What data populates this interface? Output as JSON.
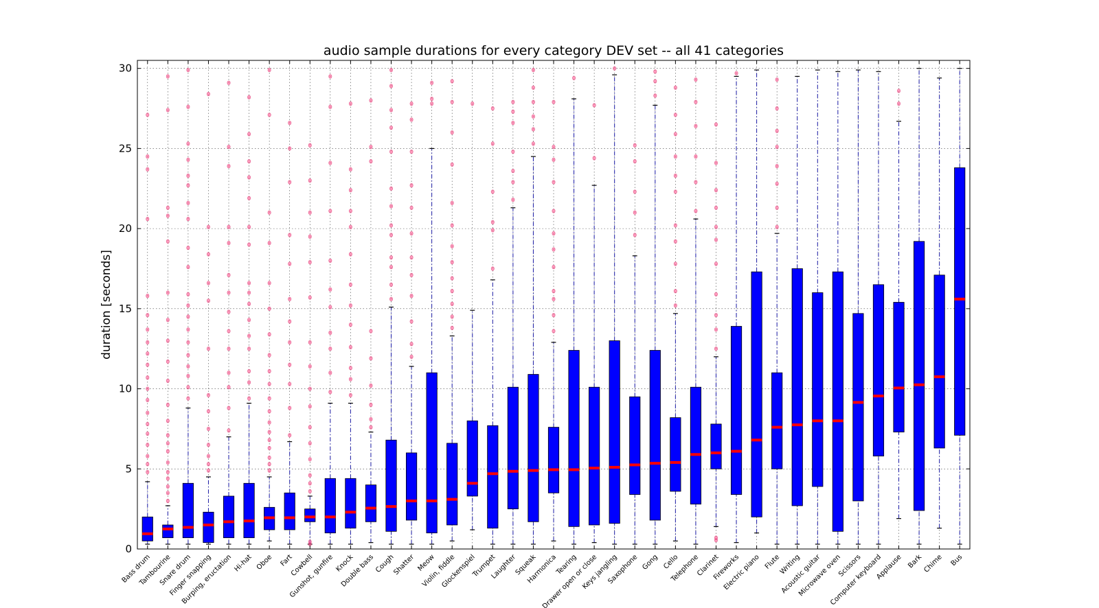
{
  "chart_data": {
    "type": "box",
    "title": "audio sample durations for every category DEV set -- all 41 categories",
    "xlabel": "",
    "ylabel": "duration [seconds]",
    "ylim": [
      0,
      30.5
    ],
    "yticks": [
      0,
      5,
      10,
      15,
      20,
      25,
      30
    ],
    "grid": true,
    "categories": [
      "Bass drum",
      "Tambourine",
      "Snare drum",
      "Finger snapping",
      "Burping, eructation",
      "Hi-hat",
      "Oboe",
      "Fart",
      "Cowbell",
      "Gunshot, gunfire",
      "Knock",
      "Double bass",
      "Cough",
      "Shatter",
      "Meow",
      "Violin, fiddle",
      "Glockenspiel",
      "Trumpet",
      "Laughter",
      "Squeak",
      "Harmonica",
      "Tearing",
      "Drawer open or close",
      "Keys jangling",
      "Saxophone",
      "Gong",
      "Cello",
      "Telephone",
      "Clarinet",
      "Fireworks",
      "Electric piano",
      "Flute",
      "Writing",
      "Acoustic guitar",
      "Microwave oven",
      "Scissors",
      "Computer keyboard",
      "Applause",
      "Bark",
      "Chime",
      "Bus"
    ],
    "whisker_low": [
      0.3,
      0.3,
      0.3,
      0.3,
      0.3,
      0.3,
      0.5,
      0.3,
      0.3,
      0.3,
      0.3,
      0.4,
      0.3,
      0.3,
      0.3,
      0.5,
      1.2,
      0.3,
      0.3,
      0.3,
      0.5,
      0.3,
      0.4,
      0.3,
      0.3,
      0.3,
      0.5,
      0.3,
      1.4,
      0.4,
      1.0,
      0.3,
      0.3,
      0.3,
      0.3,
      0.3,
      0.3,
      1.9,
      0.3,
      1.3,
      0.3
    ],
    "q1": [
      0.5,
      0.7,
      0.7,
      0.4,
      0.7,
      0.7,
      1.2,
      1.2,
      1.7,
      1.0,
      1.3,
      1.7,
      1.1,
      1.8,
      1.0,
      1.5,
      3.3,
      1.3,
      2.5,
      1.7,
      3.5,
      1.4,
      1.5,
      1.6,
      3.4,
      1.8,
      3.6,
      2.8,
      5.0,
      3.4,
      2.0,
      5.0,
      2.7,
      3.9,
      1.1,
      3.0,
      5.8,
      7.3,
      2.4,
      6.3,
      7.1
    ],
    "median": [
      0.95,
      1.25,
      1.35,
      1.5,
      1.7,
      1.75,
      1.95,
      1.95,
      2.0,
      2.0,
      2.3,
      2.55,
      2.65,
      3.0,
      3.0,
      3.1,
      4.1,
      4.7,
      4.85,
      4.9,
      4.95,
      4.95,
      5.05,
      5.1,
      5.25,
      5.35,
      5.4,
      5.9,
      6.0,
      6.1,
      6.8,
      7.6,
      7.75,
      8.0,
      8.0,
      9.15,
      9.55,
      10.05,
      10.25,
      10.75,
      15.6
    ],
    "q3": [
      2.0,
      1.5,
      4.1,
      2.3,
      3.3,
      4.1,
      2.6,
      3.5,
      2.5,
      4.4,
      4.4,
      4.0,
      6.8,
      6.0,
      11.0,
      6.6,
      8.0,
      7.7,
      10.1,
      10.9,
      7.6,
      12.4,
      10.1,
      13.0,
      9.5,
      12.4,
      8.2,
      10.1,
      7.8,
      13.9,
      17.3,
      11.0,
      17.5,
      16.0,
      17.3,
      14.7,
      16.5,
      15.4,
      19.2,
      17.1,
      23.8
    ],
    "whisker_high": [
      4.2,
      2.7,
      8.8,
      4.5,
      7.0,
      9.1,
      4.5,
      6.7,
      3.3,
      9.1,
      9.1,
      7.3,
      15.1,
      11.4,
      25.0,
      13.3,
      14.9,
      16.8,
      21.3,
      24.5,
      12.9,
      28.1,
      22.7,
      29.6,
      18.3,
      27.7,
      14.7,
      20.6,
      12.0,
      29.5,
      29.9,
      19.7,
      29.5,
      29.9,
      29.8,
      29.9,
      29.8,
      26.7,
      30.0,
      29.4,
      30.0
    ],
    "fliers_high": [
      [
        4.8,
        5.3,
        5.8,
        6.5,
        7.2,
        7.8,
        8.5,
        9.3,
        10.0,
        10.7,
        11.5,
        12.2,
        12.9,
        13.7,
        14.6,
        15.8,
        20.6,
        23.7,
        24.5,
        27.1
      ],
      [
        3.0,
        3.5,
        3.9,
        4.4,
        4.8,
        5.4,
        6.1,
        6.6,
        7.1,
        8.0,
        9.0,
        10.5,
        11.7,
        13.0,
        14.3,
        16.0,
        19.2,
        20.8,
        21.3,
        27.4,
        29.5
      ],
      [
        9.4,
        10.1,
        10.8,
        11.4,
        12.1,
        12.9,
        13.7,
        14.5,
        15.2,
        15.9,
        17.6,
        18.8,
        20.6,
        21.6,
        22.7,
        23.3,
        24.3,
        25.3,
        27.6,
        29.9
      ],
      [
        4.9,
        5.3,
        5.8,
        6.5,
        7.5,
        8.6,
        9.6,
        12.5,
        15.5,
        16.6,
        18.4,
        20.1,
        28.4
      ],
      [
        7.4,
        8.8,
        10.1,
        11.0,
        12.5,
        13.6,
        14.8,
        16.0,
        17.1,
        19.1,
        20.1,
        23.9,
        25.1,
        29.1
      ],
      [
        9.4,
        10.4,
        11.1,
        12.5,
        13.3,
        14.3,
        15.3,
        16.0,
        16.6,
        19.0,
        20.1,
        21.9,
        23.2,
        24.2,
        25.9,
        28.2
      ],
      [
        4.9,
        5.3,
        5.7,
        6.3,
        6.8,
        7.3,
        7.9,
        8.6,
        9.4,
        10.3,
        11.1,
        12.1,
        13.4,
        15.0,
        16.6,
        19.1,
        21.0,
        27.1,
        29.9
      ],
      [
        7.1,
        8.8,
        10.3,
        11.5,
        12.9,
        14.2,
        15.6,
        17.8,
        19.6,
        22.9,
        25.0,
        26.6
      ],
      [
        3.6,
        4.1,
        4.6,
        5.6,
        6.6,
        7.6,
        8.9,
        10.0,
        11.4,
        12.9,
        15.7,
        17.9,
        19.5,
        21.0,
        23.0,
        25.2
      ],
      [
        9.8,
        11.0,
        12.5,
        13.5,
        15.1,
        16.2,
        18.0,
        21.1,
        24.1,
        27.6,
        29.5
      ],
      [
        9.6,
        10.6,
        11.3,
        12.6,
        14.0,
        15.2,
        16.5,
        18.4,
        20.1,
        21.1,
        22.4,
        23.7,
        27.8
      ],
      [
        7.6,
        8.1,
        9.0,
        10.2,
        11.9,
        13.6,
        24.2,
        25.1,
        28.0
      ],
      [
        15.6,
        16.5,
        17.6,
        18.2,
        19.6,
        20.2,
        21.4,
        22.5,
        24.8,
        26.3,
        27.4,
        28.9,
        29.9
      ],
      [
        12.0,
        12.8,
        14.2,
        15.8,
        17.1,
        18.2,
        19.7,
        21.3,
        22.7,
        24.8,
        26.8,
        27.8
      ],
      [
        27.8,
        28.1,
        29.1
      ],
      [
        13.8,
        14.5,
        15.3,
        16.1,
        16.9,
        17.9,
        18.9,
        20.2,
        21.6,
        24.0,
        26.0,
        27.9,
        29.2
      ],
      [
        27.8
      ],
      [
        17.5,
        19.9,
        20.4,
        22.3,
        25.3,
        27.5
      ],
      [
        21.8,
        22.9,
        23.6,
        24.8,
        26.6,
        27.3,
        27.9
      ],
      [
        25.3,
        26.2,
        27.0,
        27.9,
        28.8,
        29.9
      ],
      [
        13.6,
        14.6,
        15.6,
        16.1,
        17.6,
        18.7,
        19.7,
        21.1,
        22.9,
        24.3,
        25.1,
        27.9
      ],
      [
        29.4
      ],
      [
        24.4,
        27.7
      ],
      [
        30.0
      ],
      [
        19.6,
        21.0,
        22.3,
        24.2,
        25.2
      ],
      [
        28.3,
        29.2,
        29.8
      ],
      [
        15.2,
        16.1,
        17.8,
        19.2,
        20.2,
        22.3,
        23.3,
        24.5,
        25.9,
        27.1,
        28.8
      ],
      [
        21.1,
        22.9,
        24.5,
        26.4,
        27.9,
        29.3
      ],
      [
        12.5,
        13.7,
        14.6,
        15.9,
        17.8,
        19.3,
        20.1,
        21.3,
        22.4,
        24.1,
        26.5
      ],
      [
        29.7
      ],
      [],
      [
        20.1,
        21.3,
        22.8,
        23.9,
        25.1,
        26.1,
        27.5,
        29.3
      ],
      [],
      [],
      [],
      [],
      [],
      [
        27.8,
        28.6
      ],
      [],
      [],
      []
    ],
    "fliers_low": [
      [],
      [],
      [],
      [],
      [],
      [],
      [],
      [],
      [
        0.3,
        0.45
      ],
      [],
      [],
      [],
      [],
      [],
      [],
      [],
      [],
      [],
      [],
      [],
      [],
      [],
      [],
      [],
      [],
      [],
      [],
      [],
      [
        0.55,
        0.7
      ],
      [],
      [],
      [],
      [],
      [],
      [],
      [],
      [],
      [],
      [],
      [],
      []
    ]
  }
}
